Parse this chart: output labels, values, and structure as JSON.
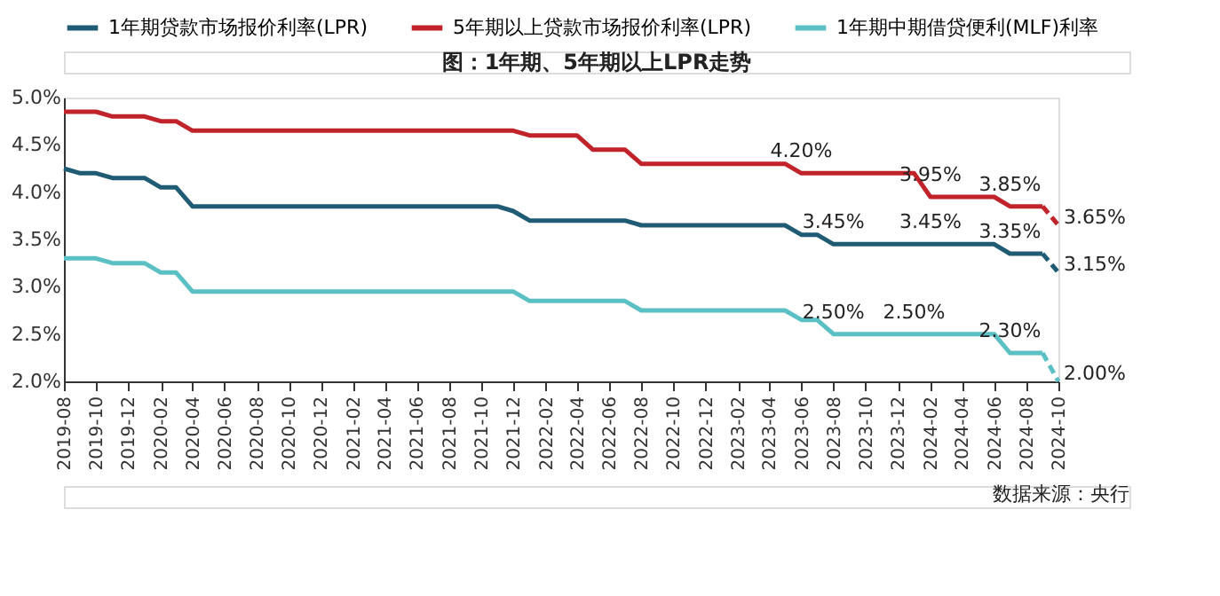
{
  "chart_data": {
    "type": "line",
    "title": "图：1年期、5年期以上LPR走势",
    "x": [
      "2019-08",
      "2019-09",
      "2019-10",
      "2019-11",
      "2019-12",
      "2020-01",
      "2020-02",
      "2020-03",
      "2020-04",
      "2020-05",
      "2020-06",
      "2020-07",
      "2020-08",
      "2020-09",
      "2020-10",
      "2020-11",
      "2020-12",
      "2021-01",
      "2021-02",
      "2021-03",
      "2021-04",
      "2021-05",
      "2021-06",
      "2021-07",
      "2021-08",
      "2021-09",
      "2021-10",
      "2021-11",
      "2021-12",
      "2022-01",
      "2022-02",
      "2022-03",
      "2022-04",
      "2022-05",
      "2022-06",
      "2022-07",
      "2022-08",
      "2022-09",
      "2022-10",
      "2022-11",
      "2022-12",
      "2023-01",
      "2023-02",
      "2023-03",
      "2023-04",
      "2023-05",
      "2023-06",
      "2023-07",
      "2023-08",
      "2023-09",
      "2023-10",
      "2023-11",
      "2023-12",
      "2024-01",
      "2024-02",
      "2024-03",
      "2024-04",
      "2024-05",
      "2024-06",
      "2024-07",
      "2024-08",
      "2024-09"
    ],
    "series": [
      {
        "name": "1年期贷款市场报价利率(LPR)",
        "color": "#1f5c74",
        "values": [
          4.25,
          4.2,
          4.2,
          4.15,
          4.15,
          4.15,
          4.05,
          4.05,
          3.85,
          3.85,
          3.85,
          3.85,
          3.85,
          3.85,
          3.85,
          3.85,
          3.85,
          3.85,
          3.85,
          3.85,
          3.85,
          3.85,
          3.85,
          3.85,
          3.85,
          3.85,
          3.85,
          3.85,
          3.8,
          3.7,
          3.7,
          3.7,
          3.7,
          3.7,
          3.7,
          3.7,
          3.65,
          3.65,
          3.65,
          3.65,
          3.65,
          3.65,
          3.65,
          3.65,
          3.65,
          3.65,
          3.55,
          3.55,
          3.45,
          3.45,
          3.45,
          3.45,
          3.45,
          3.45,
          3.45,
          3.45,
          3.45,
          3.45,
          3.45,
          3.35,
          3.35,
          3.35
        ]
      },
      {
        "name": "5年期以上贷款市场报价利率(LPR)",
        "color": "#c0242a",
        "values": [
          4.85,
          4.85,
          4.85,
          4.8,
          4.8,
          4.8,
          4.75,
          4.75,
          4.65,
          4.65,
          4.65,
          4.65,
          4.65,
          4.65,
          4.65,
          4.65,
          4.65,
          4.65,
          4.65,
          4.65,
          4.65,
          4.65,
          4.65,
          4.65,
          4.65,
          4.65,
          4.65,
          4.65,
          4.65,
          4.6,
          4.6,
          4.6,
          4.6,
          4.45,
          4.45,
          4.45,
          4.3,
          4.3,
          4.3,
          4.3,
          4.3,
          4.3,
          4.3,
          4.3,
          4.3,
          4.3,
          4.2,
          4.2,
          4.2,
          4.2,
          4.2,
          4.2,
          4.2,
          4.2,
          3.95,
          3.95,
          3.95,
          3.95,
          3.95,
          3.85,
          3.85,
          3.85
        ]
      },
      {
        "name": "1年期中期借贷便利(MLF)利率",
        "color": "#5bc0c4",
        "values": [
          3.3,
          3.3,
          3.3,
          3.25,
          3.25,
          3.25,
          3.15,
          3.15,
          2.95,
          2.95,
          2.95,
          2.95,
          2.95,
          2.95,
          2.95,
          2.95,
          2.95,
          2.95,
          2.95,
          2.95,
          2.95,
          2.95,
          2.95,
          2.95,
          2.95,
          2.95,
          2.95,
          2.95,
          2.95,
          2.85,
          2.85,
          2.85,
          2.85,
          2.85,
          2.85,
          2.85,
          2.75,
          2.75,
          2.75,
          2.75,
          2.75,
          2.75,
          2.75,
          2.75,
          2.75,
          2.75,
          2.65,
          2.65,
          2.5,
          2.5,
          2.5,
          2.5,
          2.5,
          2.5,
          2.5,
          2.5,
          2.5,
          2.5,
          2.5,
          2.3,
          2.3,
          2.3
        ]
      },
      {
        "color": "#1f5c74",
        "line_style": "dashed",
        "x": [
          "2024-09",
          "2024-10"
        ],
        "values": [
          3.35,
          3.15
        ]
      },
      {
        "color": "#c0242a",
        "line_style": "dashed",
        "x": [
          "2024-09",
          "2024-10"
        ],
        "values": [
          3.85,
          3.65
        ]
      },
      {
        "color": "#5bc0c4",
        "line_style": "dashed",
        "x": [
          "2024-09",
          "2024-10"
        ],
        "values": [
          2.3,
          2.0
        ]
      }
    ],
    "xlim": [
      "2019-08",
      "2024-10"
    ],
    "xticks": [
      "2019-08",
      "2019-10",
      "2019-12",
      "2020-02",
      "2020-04",
      "2020-06",
      "2020-08",
      "2020-10",
      "2020-12",
      "2021-02",
      "2021-04",
      "2021-06",
      "2021-08",
      "2021-10",
      "2021-12",
      "2022-02",
      "2022-04",
      "2022-06",
      "2022-08",
      "2022-10",
      "2022-12",
      "2023-02",
      "2023-04",
      "2023-06",
      "2023-08",
      "2023-10",
      "2023-12",
      "2024-02",
      "2024-04",
      "2024-06",
      "2024-08",
      "2024-10"
    ],
    "ylim": [
      2.0,
      5.0
    ],
    "yticks": [
      {
        "value": 2.0,
        "label": "2.0%"
      },
      {
        "value": 2.5,
        "label": "2.5%"
      },
      {
        "value": 3.0,
        "label": "3.0%"
      },
      {
        "value": 3.5,
        "label": "3.5%"
      },
      {
        "value": 4.0,
        "label": "4.0%"
      },
      {
        "value": 4.5,
        "label": "4.5%"
      },
      {
        "value": 5.0,
        "label": "5.0%"
      }
    ],
    "legend": "top",
    "line_style": "solid",
    "marker": "none",
    "grid": false,
    "annotations": [
      {
        "text": "4.20%",
        "x": "2023-06",
        "y": 4.2
      },
      {
        "text": "3.95%",
        "x": "2024-02",
        "y": 3.95
      },
      {
        "text": "3.85%",
        "x": "2024-07",
        "y": 3.85
      },
      {
        "text": "3.65%",
        "x": "2024-10",
        "y": 3.65
      },
      {
        "text": "3.45%",
        "x": "2023-08",
        "y": 3.45
      },
      {
        "text": "3.45%",
        "x": "2024-02",
        "y": 3.45
      },
      {
        "text": "3.35%",
        "x": "2024-07",
        "y": 3.35
      },
      {
        "text": "3.15%",
        "x": "2024-10",
        "y": 3.15
      },
      {
        "text": "2.50%",
        "x": "2023-08",
        "y": 2.5
      },
      {
        "text": "2.50%",
        "x": "2024-01",
        "y": 2.5
      },
      {
        "text": "2.30%",
        "x": "2024-07",
        "y": 2.3
      },
      {
        "text": "2.00%",
        "x": "2024-10",
        "y": 2.0
      },
      "数据来源：央行"
    ]
  }
}
